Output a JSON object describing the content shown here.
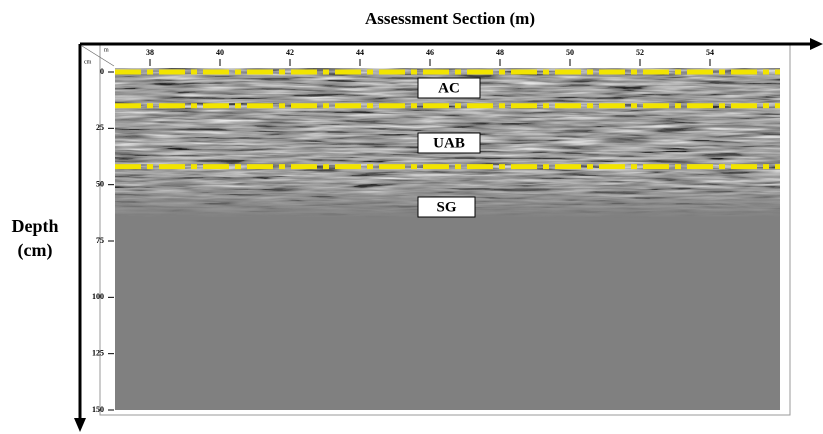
{
  "chart_data": {
    "type": "radargram",
    "xlabel": "Assessment Section (m)",
    "ylabel": "Depth (cm)",
    "x_unit": "m",
    "y_unit": "cm",
    "xlim": [
      37,
      56
    ],
    "xticks": [
      38,
      40,
      42,
      44,
      46,
      48,
      50,
      52,
      54
    ],
    "ylim": [
      0,
      150
    ],
    "yticks": [
      0,
      25,
      50,
      75,
      100,
      125,
      150
    ],
    "boundaries": [
      0,
      15,
      42
    ],
    "boundary_color": "#f2e400",
    "annotations": [
      "AC",
      "UAB",
      "SG"
    ]
  }
}
